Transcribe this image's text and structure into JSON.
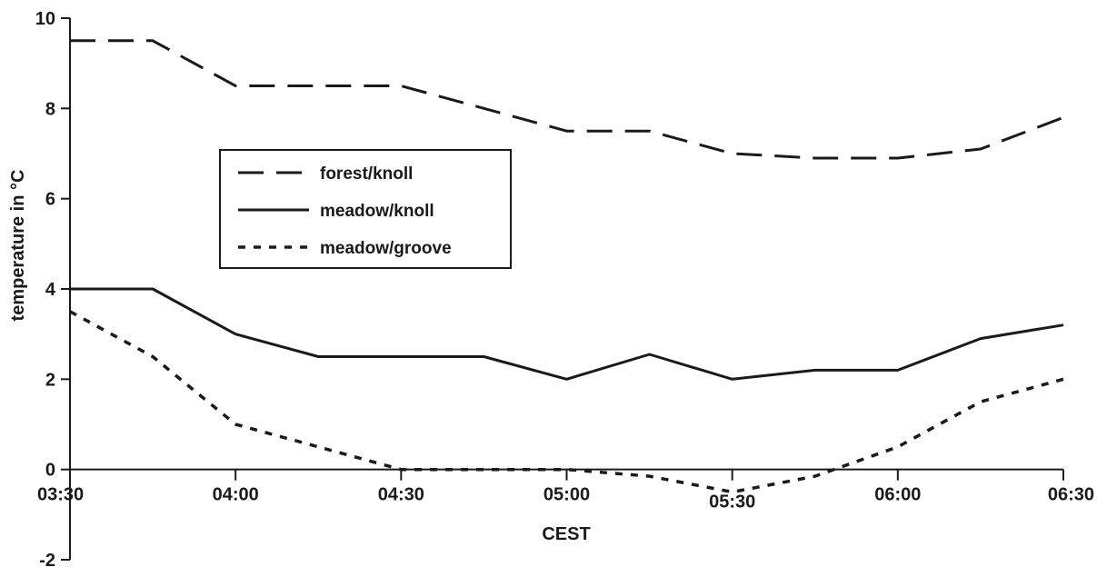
{
  "chart_data": {
    "type": "line",
    "title": "",
    "xlabel": "CEST",
    "ylabel": "temperature in °C",
    "x": [
      "03:30",
      "03:45",
      "04:00",
      "04:15",
      "04:30",
      "04:45",
      "05:00",
      "05:15",
      "05:30",
      "05:45",
      "06:00",
      "06:15",
      "06:30"
    ],
    "x_ticks": [
      "03:30",
      "04:00",
      "04:30",
      "05:00",
      "05:30",
      "06:00",
      "06:30"
    ],
    "y_ticks": [
      -2,
      0,
      2,
      4,
      6,
      8,
      10
    ],
    "ylim": [
      -2,
      10
    ],
    "grid": false,
    "legend_position": "center-left",
    "series": [
      {
        "name": "forest/knoll",
        "style": "dashed",
        "values": [
          9.5,
          9.5,
          8.5,
          8.5,
          8.5,
          8.0,
          7.5,
          7.5,
          7.0,
          6.9,
          6.9,
          7.1,
          7.8
        ]
      },
      {
        "name": "meadow/knoll",
        "style": "solid",
        "values": [
          4.0,
          4.0,
          3.0,
          2.5,
          2.5,
          2.5,
          2.0,
          2.55,
          2.0,
          2.2,
          2.2,
          2.9,
          3.2
        ]
      },
      {
        "name": "meadow/groove",
        "style": "dotted",
        "values": [
          3.5,
          2.5,
          1.0,
          0.5,
          0.0,
          0.0,
          0.0,
          -0.15,
          -0.5,
          -0.15,
          0.5,
          1.5,
          2.0
        ]
      }
    ]
  }
}
